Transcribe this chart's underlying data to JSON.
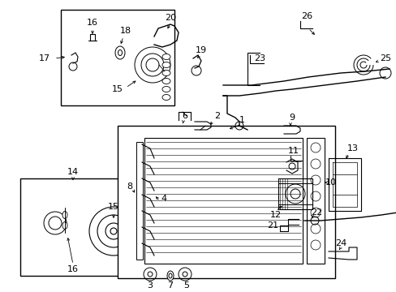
{
  "bg_color": "#ffffff",
  "fig_width": 4.89,
  "fig_height": 3.6,
  "dpi": 100,
  "line_color": "#000000",
  "text_color": "#000000",
  "font_size": 6.5
}
